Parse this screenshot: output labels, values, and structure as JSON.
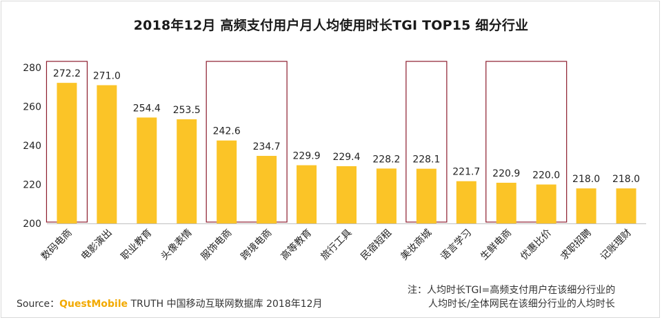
{
  "colors": {
    "bar": "#fbc427",
    "highlight_box": "#8b1a2b",
    "axis": "#bfbfbf",
    "text": "#222222",
    "brand": "#f2a900"
  },
  "chart_data": {
    "type": "bar",
    "title": "2018年12月 高频支付用户月人均使用时长TGI TOP15 细分行业",
    "categories": [
      "数码电商",
      "电影演出",
      "职业教育",
      "头像表情",
      "服饰电商",
      "跨境电商",
      "高等教育",
      "旅行工具",
      "民宿短租",
      "美妆商城",
      "语言学习",
      "生鲜电商",
      "优惠比价",
      "求职招聘",
      "记账理财"
    ],
    "values": [
      272.2,
      271.0,
      254.4,
      253.5,
      242.6,
      234.7,
      229.9,
      229.4,
      228.2,
      228.1,
      221.7,
      220.9,
      220.0,
      218.0,
      218.0
    ],
    "value_labels": [
      "272.2",
      "271.0",
      "254.4",
      "253.5",
      "242.6",
      "234.7",
      "229.9",
      "229.4",
      "228.2",
      "228.1",
      "221.7",
      "220.9",
      "220.0",
      "218.0",
      "218.0"
    ],
    "ylim": [
      200,
      285
    ],
    "yticks": [
      200,
      220,
      240,
      260,
      280
    ],
    "grid": false,
    "highlight_groups": [
      [
        0
      ],
      [
        4,
        5
      ],
      [
        9
      ],
      [
        11,
        12
      ]
    ]
  },
  "footer": {
    "source_prefix": "Source：",
    "source_brand": "QuestMobile",
    "source_rest": " TRUTH 中国移动互联网数据库 2018年12月",
    "note_line1": "注：人均时长TGI=高频支付用户在该细分行业的",
    "note_line2": "人均时长/全体网民在该细分行业的人均时长"
  }
}
